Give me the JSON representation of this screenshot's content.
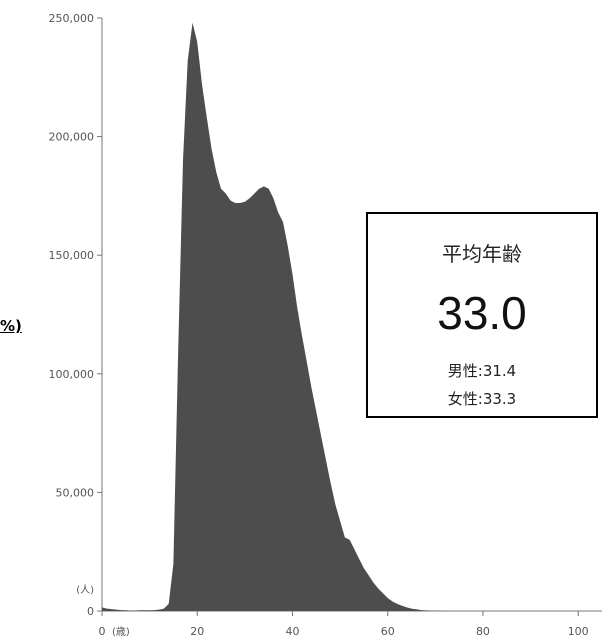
{
  "chart_data": {
    "type": "area",
    "title": "",
    "xlabel": "",
    "ylabel": "",
    "x_unit": "(歳)",
    "y_unit": "(人)",
    "xlim": [
      0,
      105
    ],
    "ylim": [
      0,
      250000
    ],
    "x_ticks": [
      0,
      20,
      40,
      60,
      80,
      100
    ],
    "y_tick_labels": [
      "0",
      "50,000",
      "100,000",
      "150,000",
      "200,000",
      "250,000"
    ],
    "y_ticks": [
      0,
      50000,
      100000,
      150000,
      200000,
      250000
    ],
    "grid": false,
    "fill_color": "#4d4d4d",
    "series": [
      {
        "x": [
          0,
          1,
          2,
          3,
          4,
          5,
          6,
          7,
          8,
          9,
          10,
          11,
          12,
          13,
          14,
          15,
          16,
          17,
          18,
          19,
          20,
          21,
          22,
          23,
          24,
          25,
          26,
          27,
          28,
          29,
          30,
          31,
          32,
          33,
          34,
          35,
          36,
          37,
          38,
          39,
          40,
          41,
          42,
          43,
          44,
          45,
          46,
          47,
          48,
          49,
          50,
          51,
          52,
          53,
          54,
          55,
          56,
          57,
          58,
          59,
          60,
          61,
          62,
          63,
          64,
          65,
          66,
          67,
          68,
          69,
          70,
          71,
          72,
          73,
          75,
          80,
          90,
          100,
          105
        ],
        "y": [
          1500,
          1000,
          800,
          600,
          400,
          300,
          200,
          200,
          300,
          300,
          300,
          400,
          600,
          1000,
          3000,
          20000,
          110000,
          190000,
          232000,
          248000,
          240000,
          222000,
          208000,
          195000,
          185000,
          178000,
          176000,
          173000,
          172000,
          172000,
          172500,
          174000,
          176000,
          178000,
          179000,
          178000,
          174000,
          168000,
          164000,
          154000,
          142000,
          128000,
          116000,
          105000,
          94000,
          84000,
          74000,
          64000,
          54000,
          45000,
          38000,
          31000,
          30000,
          26000,
          22000,
          18000,
          15000,
          12000,
          9500,
          7500,
          5500,
          4000,
          3000,
          2200,
          1500,
          1000,
          700,
          400,
          250,
          150,
          100,
          60,
          40,
          20,
          10,
          0,
          0,
          0,
          0
        ]
      }
    ]
  },
  "edge_text": "%)",
  "info_box": {
    "title": "平均年齢",
    "value": "33.0",
    "male": "男性:31.4",
    "female": "女性:33.3"
  }
}
